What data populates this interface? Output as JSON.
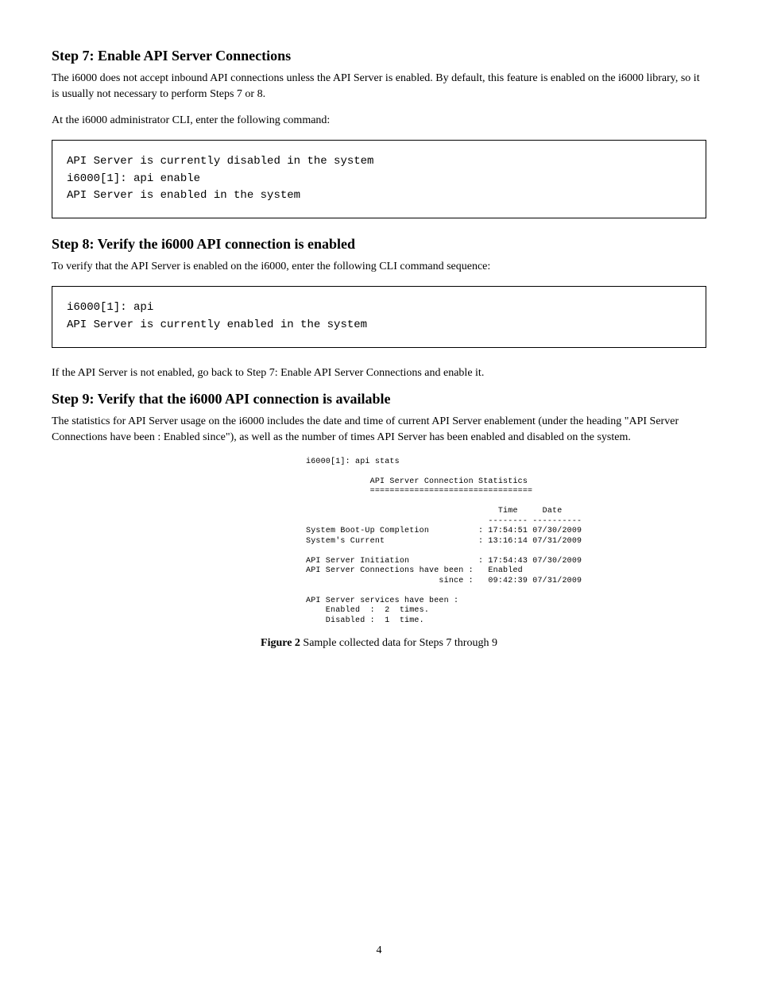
{
  "section1": {
    "heading": "Step 7: Enable API Server Connections",
    "para1": "The i6000 does not accept inbound API connections unless the API Server is enabled. By default, this feature is enabled on the i6000 library, so it is usually not necessary to perform Steps 7 or 8.",
    "para2": "At the i6000 administrator CLI, enter the following command:",
    "code": "API Server is currently disabled in the system\ni6000[1]: api enable\nAPI Server is enabled in the system"
  },
  "section2": {
    "heading": "Step 8: Verify the i6000 API connection is enabled",
    "para1": "To verify that the API Server is enabled on the i6000, enter the following CLI command sequence:",
    "code": "i6000[1]: api\nAPI Server is currently enabled in the system",
    "para2": "If the API Server is not enabled, go back to Step 7: Enable API Server Connections and enable it."
  },
  "section3": {
    "heading": "Step 9: Verify that the i6000 API connection is available",
    "para1": "The statistics for API Server usage on the i6000 includes the date and time of current API Server enablement (under the heading \"API Server Connections have been : Enabled since\"), as well as the number of times API Server has been enabled and disabled on the system."
  },
  "terminal": "i6000[1]: api stats\n\n             API Server Connection Statistics\n             =================================\n\n                                       Time     Date\n                                     -------- ----------\nSystem Boot-Up Completion          : 17:54:51 07/30/2009\nSystem's Current                   : 13:16:14 07/31/2009\n\nAPI Server Initiation              : 17:54:43 07/30/2009\nAPI Server Connections have been :   Enabled\n                           since :   09:42:39 07/31/2009\n\nAPI Server services have been :\n    Enabled  :  2  times.\n    Disabled :  1  time.",
  "figure": {
    "label": "Figure 2",
    "caption": "Sample collected data for Steps 7 through 9"
  },
  "page_number": "4"
}
